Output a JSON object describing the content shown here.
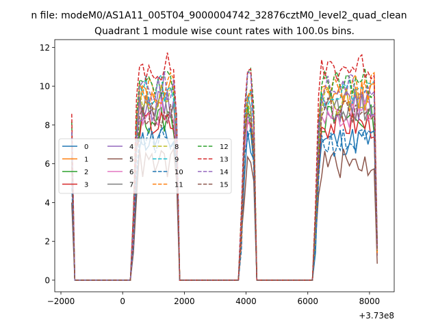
{
  "chart_data": {
    "type": "line",
    "suptitle": "n file: modeM0/AS1A11_005T04_9000004742_32876cztM0_level2_quad_clean",
    "title": "Quadrant 1 module wise count rates with 100.0s bins.",
    "xlabel": "",
    "ylabel": "",
    "xlim": [
      -2200,
      8800
    ],
    "ylim": [
      -0.6,
      12.4
    ],
    "x_offset_label": "+3.73e8",
    "x_ticks": [
      -2000,
      0,
      2000,
      4000,
      6000,
      8000
    ],
    "x_tick_labels": [
      "−2000",
      "0",
      "2000",
      "4000",
      "6000",
      "8000"
    ],
    "y_ticks": [
      0,
      2,
      4,
      6,
      8,
      10,
      12
    ],
    "y_tick_labels": [
      "0",
      "2",
      "4",
      "6",
      "8",
      "10",
      "12"
    ],
    "grid": false,
    "legend_placement": "center-left",
    "legend_columns": 4,
    "series": [
      {
        "name": "0",
        "color": "#1f77b4",
        "dash": "solid",
        "level": 7.2
      },
      {
        "name": "1",
        "color": "#ff7f0e",
        "dash": "solid",
        "level": 9.5
      },
      {
        "name": "2",
        "color": "#2ca02c",
        "dash": "solid",
        "level": 8.3
      },
      {
        "name": "3",
        "color": "#d62728",
        "dash": "solid",
        "level": 8.0
      },
      {
        "name": "4",
        "color": "#9467bd",
        "dash": "solid",
        "level": 9.0
      },
      {
        "name": "5",
        "color": "#8c564b",
        "dash": "solid",
        "level": 6.0
      },
      {
        "name": "6",
        "color": "#e377c2",
        "dash": "solid",
        "level": 8.6
      },
      {
        "name": "7",
        "color": "#7f7f7f",
        "dash": "solid",
        "level": 8.9
      },
      {
        "name": "8",
        "color": "#bcbd22",
        "dash": "dashed",
        "level": 9.3
      },
      {
        "name": "9",
        "color": "#17becf",
        "dash": "dashed",
        "level": 9.8
      },
      {
        "name": "10",
        "color": "#1f77b4",
        "dash": "dashed",
        "level": 7.1
      },
      {
        "name": "11",
        "color": "#ff7f0e",
        "dash": "dashed",
        "level": 9.9
      },
      {
        "name": "12",
        "color": "#2ca02c",
        "dash": "dashed",
        "level": 10.2
      },
      {
        "name": "13",
        "color": "#d62728",
        "dash": "dashed",
        "level": 11.0
      },
      {
        "name": "14",
        "color": "#9467bd",
        "dash": "dashed",
        "level": 10.0
      },
      {
        "name": "15",
        "color": "#8c564b",
        "dash": "dashed",
        "level": 8.6
      }
    ]
  }
}
